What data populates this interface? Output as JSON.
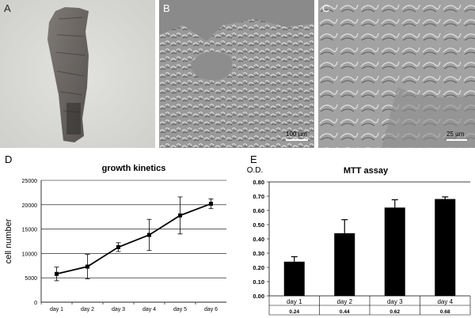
{
  "panels": {
    "A": {
      "letter": "A"
    },
    "B": {
      "letter": "B",
      "scalebar": "100 µm"
    },
    "C": {
      "letter": "C",
      "scalebar": "25 µm"
    },
    "D": {
      "letter": "D"
    },
    "E": {
      "letter": "E"
    }
  },
  "chart_data": [
    {
      "type": "line",
      "title": "growth kinetics",
      "xlabel": "",
      "ylabel": "cell number",
      "categories": [
        "day 1",
        "day 2",
        "day 3",
        "day 4",
        "day 5",
        "day 6"
      ],
      "values": [
        5800,
        7300,
        11300,
        13800,
        17800,
        20200
      ],
      "error": [
        1400,
        2500,
        900,
        3200,
        3800,
        1000
      ],
      "ylim": [
        0,
        25000
      ],
      "yticks": [
        "0",
        "5000",
        "10000",
        "15000",
        "20000",
        "25000"
      ],
      "grid": true,
      "color": "#000000"
    },
    {
      "type": "bar",
      "title": "MTT assay",
      "ylabel": "O.D.",
      "categories": [
        "day 1",
        "day 2",
        "day 3",
        "day 4"
      ],
      "values": [
        0.24,
        0.44,
        0.62,
        0.68
      ],
      "value_labels": [
        "0.24",
        "0.44",
        "0.62",
        "0.68"
      ],
      "error": [
        0.035,
        0.095,
        0.055,
        0.015
      ],
      "ylim": [
        0,
        0.8
      ],
      "yticks": [
        "0.00",
        "0.10",
        "0.20",
        "0.30",
        "0.40",
        "0.50",
        "0.60",
        "0.70",
        "0.80"
      ],
      "grid": false,
      "color": "#000000"
    }
  ]
}
